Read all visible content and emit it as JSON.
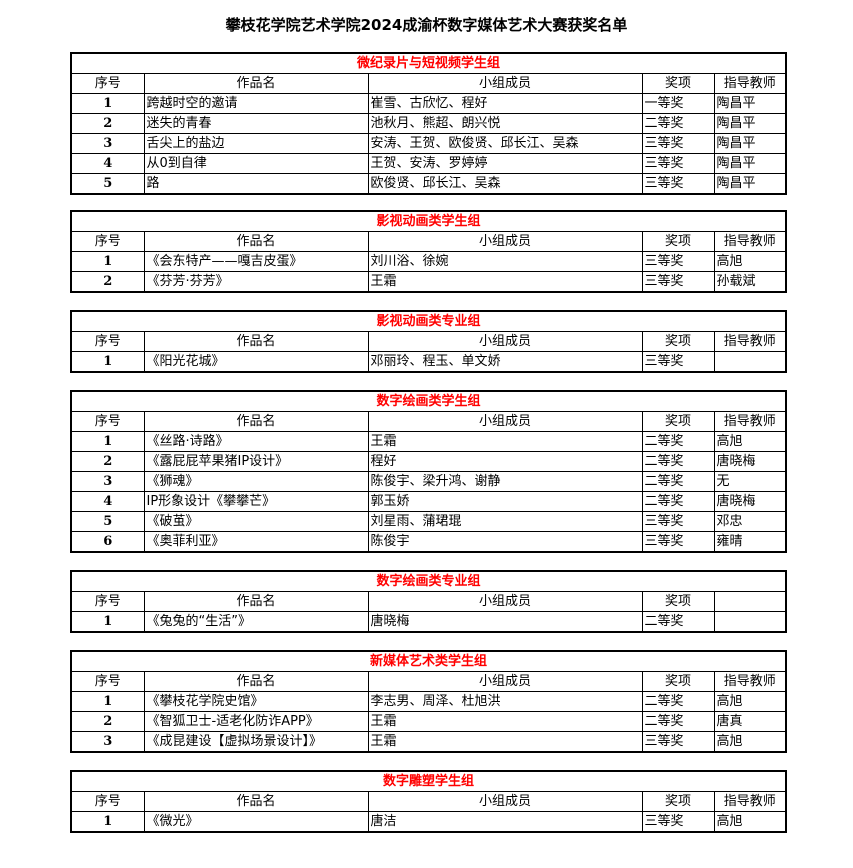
{
  "title": "攀枝花学院艺术学院2024成渝杯数字媒体艺术大赛获奖名单",
  "title_color": "#ff0000",
  "headers": [
    "序号",
    "作品名",
    "小组成员",
    "奖项",
    "指导教师"
  ],
  "groups": [
    {
      "name": "微纪录片与短视频学生组",
      "show_teacher_header": true,
      "rows": [
        [
          "1",
          "跨越时空的邀请",
          "崔雪、古欣忆、程好",
          "一等奖",
          "陶昌平"
        ],
        [
          "2",
          "迷失的青春",
          "池秋月、熊超、朗兴悦",
          "二等奖",
          "陶昌平"
        ],
        [
          "3",
          "舌尖上的盐边",
          "安涛、王贺、欧俊贤、邱长江、吴森",
          "三等奖",
          "陶昌平"
        ],
        [
          "4",
          "从0到自律",
          "王贺、安涛、罗婷婷",
          "三等奖",
          "陶昌平"
        ],
        [
          "5",
          "路",
          "欧俊贤、邱长江、吴森",
          "三等奖",
          "陶昌平"
        ]
      ]
    },
    {
      "name": "影视动画类学生组",
      "show_teacher_header": true,
      "rows": [
        [
          "1",
          "《会东特产——嘎吉皮蛋》",
          "刘川浴、徐婉",
          "三等奖",
          "高旭"
        ],
        [
          "2",
          "《芬芳·芬芳》",
          "王霜",
          "三等奖",
          "孙载斌"
        ]
      ]
    },
    {
      "name": "影视动画类专业组",
      "show_teacher_header": true,
      "rows": [
        [
          "1",
          "《阳光花城》",
          "邓丽玲、程玉、单文娇",
          "三等奖",
          ""
        ]
      ]
    },
    {
      "name": "数字绘画类学生组",
      "show_teacher_header": true,
      "rows": [
        [
          "1",
          "《丝路·诗路》",
          "王霜",
          "二等奖",
          "高旭"
        ],
        [
          "2",
          "《露屁屁苹果猪IP设计》",
          "程好",
          "二等奖",
          "唐晓梅"
        ],
        [
          "3",
          "《狮魂》",
          "陈俊宇、梁升鸿、谢静",
          "二等奖",
          "无"
        ],
        [
          "4",
          "IP形象设计《攀攀芒》",
          "郭玉娇",
          "二等奖",
          "唐晓梅"
        ],
        [
          "5",
          "《破茧》",
          "刘星雨、蒲珺琨",
          "三等奖",
          "邓忠"
        ],
        [
          "6",
          "《奥菲利亚》",
          "陈俊宇",
          "三等奖",
          "雍晴"
        ]
      ]
    },
    {
      "name": "数字绘画类专业组",
      "show_teacher_header": false,
      "rows": [
        [
          "1",
          "《兔兔的“生活”》",
          "唐晓梅",
          "二等奖",
          ""
        ]
      ]
    },
    {
      "name": "新媒体艺术类学生组",
      "show_teacher_header": true,
      "rows": [
        [
          "1",
          "《攀枝花学院史馆》",
          "李志男、周泽、杜旭洪",
          "二等奖",
          "高旭"
        ],
        [
          "2",
          "《智狐卫士-适老化防诈APP》",
          "王霜",
          "二等奖",
          "唐真"
        ],
        [
          "3",
          "《成昆建设【虚拟场景设计】》",
          "王霜",
          "三等奖",
          "高旭"
        ]
      ]
    },
    {
      "name": "数字雕塑学生组",
      "show_teacher_header": true,
      "rows": [
        [
          "1",
          "《微光》",
          "唐洁",
          "三等奖",
          "高旭"
        ]
      ]
    }
  ]
}
